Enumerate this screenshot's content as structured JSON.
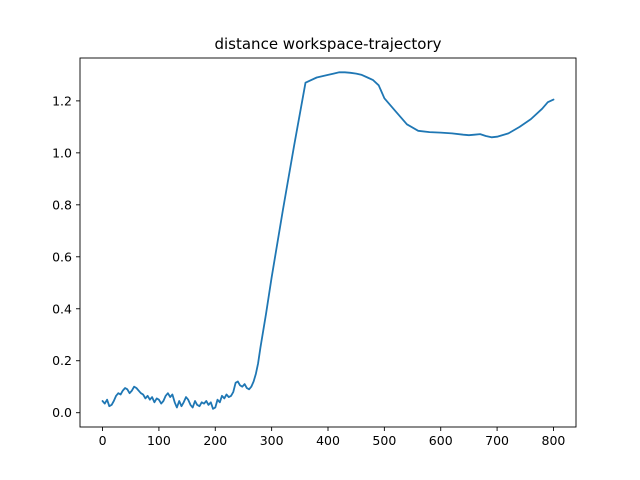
{
  "chart_data": {
    "type": "line",
    "title": "distance workspace-trajectory",
    "xlabel": "",
    "ylabel": "",
    "xlim": [
      -40,
      840
    ],
    "ylim": [
      -0.055,
      1.365
    ],
    "xticks": [
      0,
      100,
      200,
      300,
      400,
      500,
      600,
      700,
      800
    ],
    "yticks": [
      0.0,
      0.2,
      0.4,
      0.6,
      0.8,
      1.0,
      1.2
    ],
    "ytick_labels": [
      "0.0",
      "0.2",
      "0.4",
      "0.6",
      "0.8",
      "1.0",
      "1.2"
    ],
    "grid": false,
    "legend": "none",
    "colors": {
      "line": "#1f77b4",
      "axes": "#000000",
      "background": "#ffffff"
    },
    "series": [
      {
        "x": [
          0,
          4,
          8,
          12,
          16,
          20,
          24,
          28,
          32,
          36,
          40,
          44,
          48,
          52,
          56,
          60,
          64,
          68,
          72,
          76,
          80,
          84,
          88,
          92,
          96,
          100,
          104,
          108,
          112,
          116,
          120,
          124,
          128,
          132,
          136,
          140,
          144,
          148,
          152,
          156,
          160,
          164,
          168,
          172,
          176,
          180,
          184,
          188,
          192,
          196,
          200,
          204,
          208,
          212,
          216,
          220,
          224,
          228,
          232,
          236,
          240,
          244,
          248,
          252,
          256,
          260,
          264,
          268,
          272,
          276,
          280,
          290,
          300,
          320,
          340,
          360,
          380,
          400,
          410,
          420,
          430,
          440,
          450,
          460,
          470,
          480,
          490,
          500,
          520,
          540,
          560,
          580,
          600,
          620,
          640,
          650,
          660,
          670,
          680,
          690,
          700,
          720,
          740,
          760,
          780,
          790,
          800
        ],
        "y": [
          0.045,
          0.035,
          0.05,
          0.025,
          0.03,
          0.045,
          0.065,
          0.075,
          0.07,
          0.085,
          0.095,
          0.09,
          0.075,
          0.085,
          0.1,
          0.095,
          0.085,
          0.075,
          0.07,
          0.055,
          0.065,
          0.05,
          0.06,
          0.04,
          0.055,
          0.05,
          0.035,
          0.045,
          0.065,
          0.075,
          0.06,
          0.07,
          0.04,
          0.02,
          0.045,
          0.025,
          0.04,
          0.06,
          0.05,
          0.03,
          0.02,
          0.045,
          0.03,
          0.025,
          0.04,
          0.035,
          0.045,
          0.03,
          0.04,
          0.015,
          0.02,
          0.05,
          0.04,
          0.065,
          0.055,
          0.07,
          0.06,
          0.065,
          0.08,
          0.115,
          0.12,
          0.105,
          0.1,
          0.11,
          0.095,
          0.09,
          0.1,
          0.12,
          0.15,
          0.19,
          0.25,
          0.38,
          0.52,
          0.78,
          1.03,
          1.27,
          1.29,
          1.3,
          1.305,
          1.31,
          1.31,
          1.308,
          1.305,
          1.3,
          1.29,
          1.28,
          1.26,
          1.21,
          1.16,
          1.11,
          1.085,
          1.08,
          1.078,
          1.075,
          1.07,
          1.068,
          1.07,
          1.072,
          1.065,
          1.06,
          1.062,
          1.075,
          1.1,
          1.13,
          1.17,
          1.195,
          1.205
        ]
      }
    ]
  }
}
